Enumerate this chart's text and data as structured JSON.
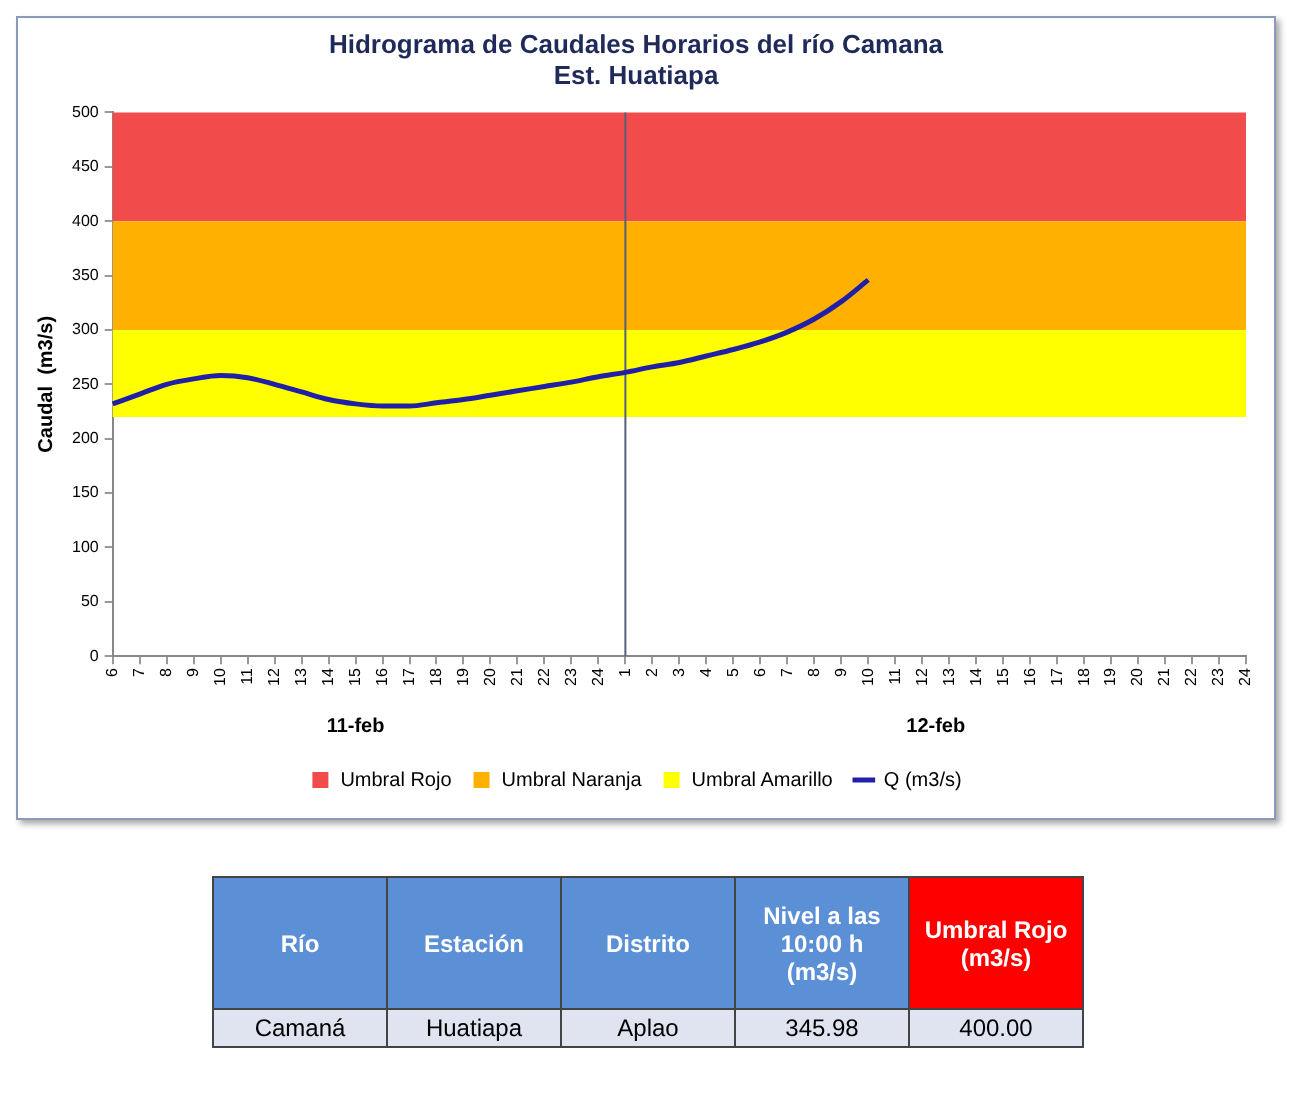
{
  "chart_data": [
    {
      "type": "line",
      "title": "Hidrograma de Caudales Horarios del río Camana",
      "subtitle": "Est. Huatiapa",
      "ylabel": "Caudal  (m3/s)",
      "categories": [
        "6",
        "7",
        "8",
        "9",
        "10",
        "11",
        "12",
        "13",
        "14",
        "15",
        "16",
        "17",
        "18",
        "19",
        "20",
        "21",
        "22",
        "23",
        "24",
        "1",
        "2",
        "3",
        "4",
        "5",
        "6",
        "7",
        "8",
        "9",
        "10",
        "11",
        "12",
        "13",
        "14",
        "15",
        "16",
        "17",
        "18",
        "19",
        "20",
        "21",
        "22",
        "23",
        "24"
      ],
      "series": [
        {
          "name": "Q (m3/s)",
          "color": "#1f1fa8",
          "values": [
            232,
            241,
            250,
            255,
            258,
            256,
            250,
            243,
            236,
            232,
            230,
            230,
            233,
            236,
            240,
            244,
            248,
            252,
            257,
            261,
            266,
            270,
            276,
            282,
            289,
            298,
            310,
            326,
            346,
            null,
            null,
            null,
            null,
            null,
            null,
            null,
            null,
            null,
            null,
            null,
            null,
            null,
            null
          ]
        }
      ],
      "annotations": [
        "11-feb",
        "12-feb"
      ],
      "ylim": [
        0,
        500
      ],
      "yticks": [
        0,
        50,
        100,
        150,
        200,
        250,
        300,
        350,
        400,
        450,
        500
      ],
      "bands": [
        {
          "axis": "y",
          "from": 400,
          "to": 500,
          "label": "Umbral Rojo",
          "color": "#f24b4b"
        },
        {
          "axis": "y",
          "from": 300,
          "to": 400,
          "label": "Umbral Naranja",
          "color": "#ffb000"
        },
        {
          "axis": "y",
          "from": 220,
          "to": 300,
          "label": "Umbral Amarillo",
          "color": "#ffff00"
        }
      ],
      "ref_lines": [
        {
          "axis": "x",
          "value": "1",
          "color": "#55607a"
        }
      ],
      "grid": false,
      "legend": "bottom",
      "marker": "none",
      "line_style": "solid"
    },
    {
      "type": "other",
      "categories": [
        "Río",
        "Estación",
        "Distrito",
        "Nivel a las 10:00 h (m3/s)",
        "Umbral Rojo (m3/s)"
      ],
      "annotations": [
        "Camaná",
        "Huatiapa",
        "Aplao",
        "345.98",
        "400.00"
      ]
    }
  ]
}
